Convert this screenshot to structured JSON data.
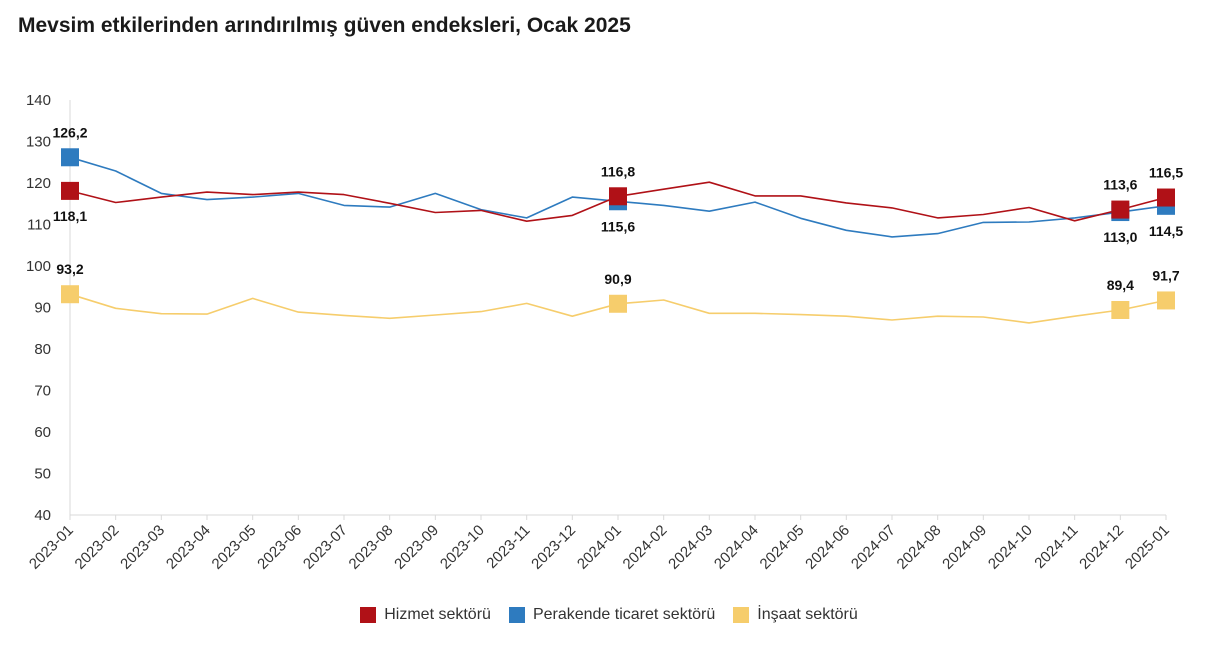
{
  "title": "Mevsim etkilerinden arındırılmış güven endeksleri, Ocak 2025",
  "chart_data": {
    "type": "line",
    "title": "Mevsim etkilerinden arındırılmış güven endeksleri, Ocak 2025",
    "xlabel": "",
    "ylabel": "",
    "ylim": [
      40,
      140
    ],
    "yticks": [
      140,
      130,
      120,
      110,
      100,
      90,
      80,
      70,
      60,
      50,
      40
    ],
    "grid": false,
    "legend_position": "bottom",
    "categories": [
      "2023-01",
      "2023-02",
      "2023-03",
      "2023-04",
      "2023-05",
      "2023-06",
      "2023-07",
      "2023-08",
      "2023-09",
      "2023-10",
      "2023-11",
      "2023-12",
      "2024-01",
      "2024-02",
      "2024-03",
      "2024-04",
      "2024-05",
      "2024-06",
      "2024-07",
      "2024-08",
      "2024-09",
      "2024-10",
      "2024-11",
      "2024-12",
      "2025-01"
    ],
    "series": [
      {
        "name": "Hizmet sektörü",
        "color": "#b01117",
        "values": [
          118.1,
          115.3,
          116.6,
          117.8,
          117.2,
          117.8,
          117.2,
          115.1,
          112.9,
          113.4,
          110.8,
          112.2,
          116.8,
          118.5,
          120.2,
          116.9,
          116.9,
          115.2,
          114.0,
          111.6,
          112.4,
          114.1,
          110.9,
          113.6,
          116.5
        ],
        "labels": [
          {
            "index": 0,
            "text": "118,1",
            "pos": "below"
          },
          {
            "index": 12,
            "text": "116,8",
            "pos": "above"
          },
          {
            "index": 23,
            "text": "113,6",
            "pos": "above"
          },
          {
            "index": 24,
            "text": "116,5",
            "pos": "above"
          }
        ]
      },
      {
        "name": "Perakende ticaret sektörü",
        "color": "#2e7bbf",
        "values": [
          126.2,
          122.9,
          117.5,
          116.0,
          116.6,
          117.5,
          114.6,
          114.2,
          117.5,
          113.6,
          111.6,
          116.6,
          115.6,
          114.6,
          113.2,
          115.4,
          111.5,
          108.6,
          107.0,
          107.8,
          110.5,
          110.6,
          111.6,
          113.0,
          114.5
        ],
        "labels": [
          {
            "index": 0,
            "text": "126,2",
            "pos": "above"
          },
          {
            "index": 12,
            "text": "115,6",
            "pos": "below"
          },
          {
            "index": 23,
            "text": "113,0",
            "pos": "below"
          },
          {
            "index": 24,
            "text": "114,5",
            "pos": "below"
          }
        ]
      },
      {
        "name": "İnşaat sektörü",
        "color": "#f6cd6c",
        "values": [
          93.2,
          89.8,
          88.5,
          88.4,
          92.2,
          88.9,
          88.1,
          87.4,
          88.2,
          89.0,
          91.0,
          87.9,
          90.9,
          91.8,
          88.6,
          88.6,
          88.3,
          87.9,
          87.0,
          87.9,
          87.7,
          86.3,
          87.9,
          89.4,
          91.7
        ],
        "labels": [
          {
            "index": 0,
            "text": "93,2",
            "pos": "above"
          },
          {
            "index": 12,
            "text": "90,9",
            "pos": "above"
          },
          {
            "index": 23,
            "text": "89,4",
            "pos": "above"
          },
          {
            "index": 24,
            "text": "91,7",
            "pos": "above"
          }
        ]
      }
    ]
  }
}
